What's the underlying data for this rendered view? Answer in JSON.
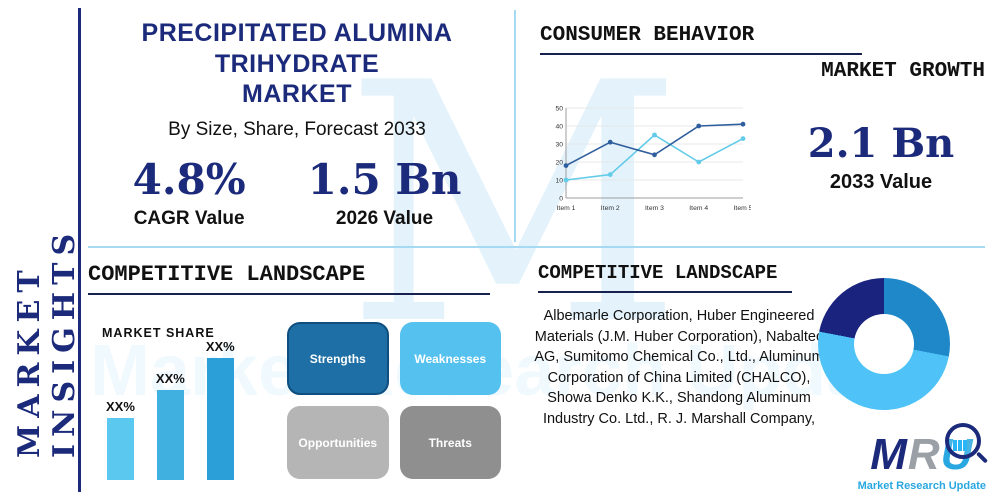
{
  "colors": {
    "navy": "#1b2a7a",
    "cyan": "#29a7e0",
    "divider": "#a6d9f2"
  },
  "watermark": {
    "letter": "M"
  },
  "sidebar": {
    "label": "MARKET INSIGHTS"
  },
  "header": {
    "title_line1": "PRECIPITATED ALUMINA TRIHYDRATE",
    "title_line2": "MARKET",
    "subtitle": "By Size, Share, Forecast 2033"
  },
  "stats": [
    {
      "value": "4.8%",
      "label": "CAGR Value"
    },
    {
      "value": "1.5 Bn",
      "label": "2026 Value"
    },
    {
      "value": "2.1 Bn",
      "label": "2033 Value"
    }
  ],
  "sections": {
    "consumer_behavior": "CONSUMER BEHAVIOR",
    "market_growth": "MARKET GROWTH",
    "competitive_landscape_left": "COMPETITIVE LANDSCAPE",
    "competitive_landscape_right": "COMPETITIVE LANDSCAPE",
    "market_share": "MARKET SHARE"
  },
  "swot": [
    {
      "label": "Strengths",
      "color": "#1d6fa5"
    },
    {
      "label": "Weaknesses",
      "color": "#55c1ef"
    },
    {
      "label": "Opportunities",
      "color": "#b5b5b5"
    },
    {
      "label": "Threats",
      "color": "#8f8f8f"
    }
  ],
  "companies_text": "Albemarle Corporation, Huber Engineered Materials (J.M. Huber Corporation), Nabaltec AG, Sumitomo Chemical Co., Ltd., Aluminum Corporation of China Limited (CHALCO), Showa Denko K.K., Shandong Aluminum Industry Co. Ltd., R. J. Marshall Company,",
  "logo": {
    "letters": [
      {
        "char": "M",
        "color": "#1b2a7a"
      },
      {
        "char": "R",
        "color": "#9aa0a6"
      },
      {
        "char": "U",
        "color": "#29a7e0"
      }
    ],
    "tagline": "Market Research Update"
  },
  "chart_data": [
    {
      "type": "line",
      "title": "Consumer behavior / market growth trend",
      "x": [
        "Item 1",
        "Item 2",
        "Item 3",
        "Item 4",
        "Item 5"
      ],
      "series": [
        {
          "name": "navy-series",
          "color": "#2f5e9e",
          "values": [
            18,
            31,
            24,
            40,
            41
          ]
        },
        {
          "name": "cyan-series",
          "color": "#62cbe8",
          "values": [
            10,
            13,
            35,
            20,
            33
          ]
        }
      ],
      "ylim": [
        0,
        50
      ],
      "yticks": [
        0,
        10,
        20,
        30,
        40,
        50
      ],
      "grid": true,
      "legend": "none"
    },
    {
      "type": "bar",
      "title": "MARKET SHARE",
      "categories": [
        "XX%",
        "XX%",
        "XX%"
      ],
      "values": [
        25,
        36,
        49
      ],
      "colors": [
        "#5bc8f0",
        "#3fb0e0",
        "#2b9fd8"
      ],
      "ylim": [
        0,
        60
      ]
    },
    {
      "type": "donut",
      "title": "Competitive landscape share",
      "slices": [
        {
          "name": "segment-medium-blue",
          "value": 28,
          "color": "#1e88c9"
        },
        {
          "name": "segment-light-blue",
          "value": 50,
          "color": "#4fc3f7"
        },
        {
          "name": "segment-navy",
          "value": 22,
          "color": "#1a237e"
        }
      ]
    }
  ]
}
